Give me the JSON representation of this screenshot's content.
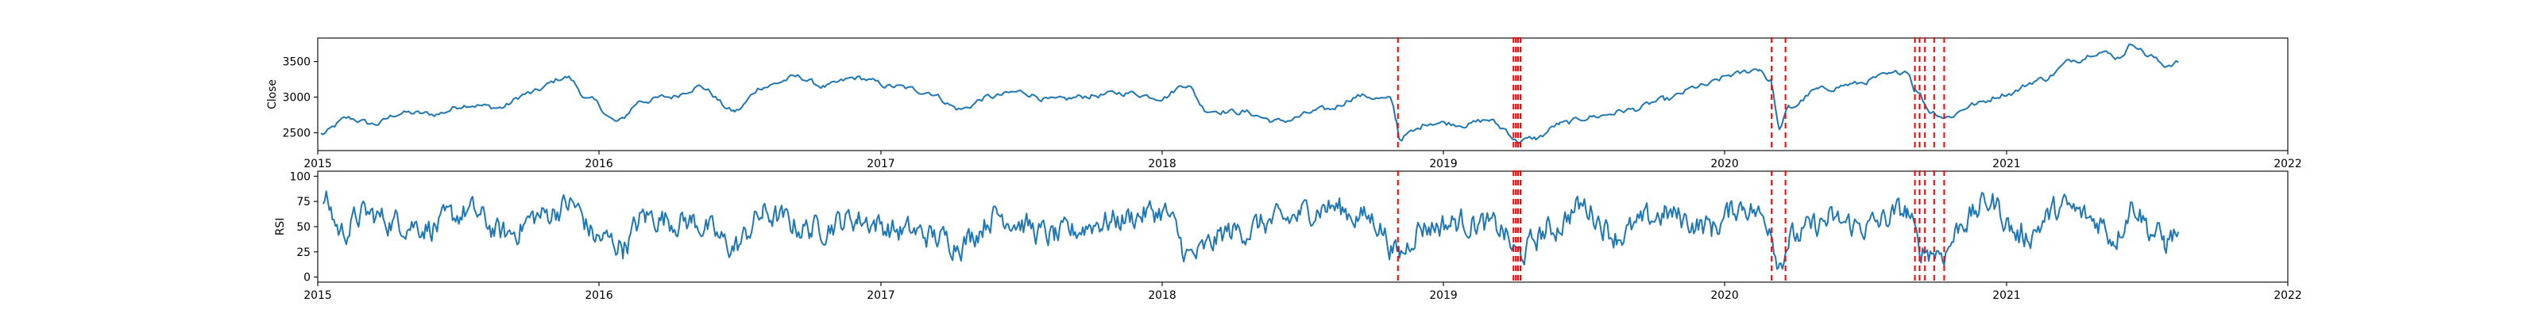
{
  "colors": {
    "series": "#1f77b4",
    "event_lines": "#ff0000",
    "axes": "#000000"
  },
  "chart_data": [
    {
      "type": "line",
      "ylabel": "Close",
      "xlim": [
        "2015-01-01",
        "2022-01-01"
      ],
      "x_ticks": [
        "2015",
        "2016",
        "2017",
        "2018",
        "2019",
        "2020",
        "2021",
        "2022"
      ],
      "ylim": [
        2250,
        3830
      ],
      "y_ticks": [
        2500,
        3000,
        3500
      ],
      "grid": false,
      "series_anchors": [
        [
          "2015-01-05",
          2480
        ],
        [
          "2015-02-10",
          2700
        ],
        [
          "2015-03-15",
          2620
        ],
        [
          "2015-04-20",
          2780
        ],
        [
          "2015-06-01",
          2760
        ],
        [
          "2015-07-15",
          2900
        ],
        [
          "2015-08-25",
          2850
        ],
        [
          "2015-10-01",
          3050
        ],
        [
          "2015-11-20",
          3280
        ],
        [
          "2015-12-20",
          2960
        ],
        [
          "2016-01-25",
          2650
        ],
        [
          "2016-02-25",
          2950
        ],
        [
          "2016-04-01",
          3000
        ],
        [
          "2016-05-10",
          3150
        ],
        [
          "2016-06-25",
          2800
        ],
        [
          "2016-08-01",
          3150
        ],
        [
          "2016-09-15",
          3280
        ],
        [
          "2016-10-20",
          3150
        ],
        [
          "2016-12-01",
          3270
        ],
        [
          "2017-01-15",
          3150
        ],
        [
          "2017-03-01",
          3080
        ],
        [
          "2017-04-15",
          2830
        ],
        [
          "2017-05-20",
          3000
        ],
        [
          "2017-07-01",
          3070
        ],
        [
          "2017-08-15",
          2950
        ],
        [
          "2017-10-01",
          3020
        ],
        [
          "2017-11-15",
          3060
        ],
        [
          "2018-01-01",
          3000
        ],
        [
          "2018-02-01",
          3180
        ],
        [
          "2018-02-28",
          2820
        ],
        [
          "2018-04-15",
          2790
        ],
        [
          "2018-06-01",
          2660
        ],
        [
          "2018-08-01",
          2820
        ],
        [
          "2018-09-15",
          3020
        ],
        [
          "2018-10-25",
          2960
        ],
        [
          "2018-11-01",
          2680
        ],
        [
          "2018-11-05",
          2420
        ],
        [
          "2018-11-20",
          2500
        ],
        [
          "2018-12-15",
          2650
        ],
        [
          "2019-01-31",
          2620
        ],
        [
          "2019-03-01",
          2680
        ],
        [
          "2019-03-20",
          2560
        ],
        [
          "2019-04-08",
          2380
        ],
        [
          "2019-05-01",
          2420
        ],
        [
          "2019-06-01",
          2620
        ],
        [
          "2019-07-15",
          2730
        ],
        [
          "2019-09-01",
          2820
        ],
        [
          "2019-10-15",
          2960
        ],
        [
          "2019-12-01",
          3150
        ],
        [
          "2020-01-15",
          3320
        ],
        [
          "2020-02-15",
          3400
        ],
        [
          "2020-03-01",
          3220
        ],
        [
          "2020-03-12",
          2560
        ],
        [
          "2020-03-25",
          2850
        ],
        [
          "2020-05-01",
          3100
        ],
        [
          "2020-06-15",
          3180
        ],
        [
          "2020-08-01",
          3300
        ],
        [
          "2020-08-25",
          3380
        ],
        [
          "2020-09-05",
          3100
        ],
        [
          "2020-09-25",
          2800
        ],
        [
          "2020-10-15",
          2720
        ],
        [
          "2020-11-20",
          2900
        ],
        [
          "2021-01-01",
          3050
        ],
        [
          "2021-02-15",
          3250
        ],
        [
          "2021-04-01",
          3530
        ],
        [
          "2021-05-01",
          3650
        ],
        [
          "2021-05-25",
          3560
        ],
        [
          "2021-06-15",
          3750
        ],
        [
          "2021-07-05",
          3580
        ],
        [
          "2021-07-25",
          3450
        ],
        [
          "2021-08-12",
          3490
        ]
      ],
      "event_dates": [
        "2018-11-03",
        "2019-04-02",
        "2019-04-05",
        "2019-04-08",
        "2019-04-11",
        "2020-03-02",
        "2020-03-20",
        "2020-09-04",
        "2020-09-10",
        "2020-09-17",
        "2020-09-29",
        "2020-10-12"
      ]
    },
    {
      "type": "line",
      "ylabel": "RSI",
      "xlim": [
        "2015-01-01",
        "2022-01-01"
      ],
      "x_ticks": [
        "2015",
        "2016",
        "2017",
        "2018",
        "2019",
        "2020",
        "2021",
        "2022"
      ],
      "ylim": [
        -5,
        105
      ],
      "y_ticks": [
        0,
        25,
        50,
        75,
        100
      ],
      "grid": false,
      "series_anchors": [
        [
          "2015-01-08",
          78
        ],
        [
          "2015-02-01",
          45
        ],
        [
          "2015-03-01",
          62
        ],
        [
          "2015-04-15",
          55
        ],
        [
          "2015-06-01",
          50
        ],
        [
          "2015-07-15",
          65
        ],
        [
          "2015-09-01",
          42
        ],
        [
          "2015-10-15",
          60
        ],
        [
          "2015-11-25",
          72
        ],
        [
          "2016-01-01",
          38
        ],
        [
          "2016-02-01",
          32
        ],
        [
          "2016-03-01",
          60
        ],
        [
          "2016-05-01",
          55
        ],
        [
          "2016-06-25",
          30
        ],
        [
          "2016-08-01",
          62
        ],
        [
          "2016-10-01",
          48
        ],
        [
          "2016-12-01",
          58
        ],
        [
          "2017-02-01",
          45
        ],
        [
          "2017-04-15",
          35
        ],
        [
          "2017-06-01",
          62
        ],
        [
          "2017-08-15",
          40
        ],
        [
          "2017-10-15",
          55
        ],
        [
          "2018-01-01",
          65
        ],
        [
          "2018-02-08",
          20
        ],
        [
          "2018-04-01",
          45
        ],
        [
          "2018-06-01",
          55
        ],
        [
          "2018-08-01",
          70
        ],
        [
          "2018-10-01",
          58
        ],
        [
          "2018-11-05",
          22
        ],
        [
          "2018-12-01",
          50
        ],
        [
          "2019-02-01",
          55
        ],
        [
          "2019-03-15",
          48
        ],
        [
          "2019-04-08",
          22
        ],
        [
          "2019-05-15",
          45
        ],
        [
          "2019-07-01",
          70
        ],
        [
          "2019-08-15",
          42
        ],
        [
          "2019-10-15",
          62
        ],
        [
          "2019-12-15",
          50
        ],
        [
          "2020-01-25",
          72
        ],
        [
          "2020-02-28",
          55
        ],
        [
          "2020-03-12",
          15
        ],
        [
          "2020-03-25",
          38
        ],
        [
          "2020-05-15",
          55
        ],
        [
          "2020-07-01",
          50
        ],
        [
          "2020-08-25",
          65
        ],
        [
          "2020-09-10",
          28
        ],
        [
          "2020-10-10",
          25
        ],
        [
          "2020-11-10",
          58
        ],
        [
          "2020-12-10",
          75
        ],
        [
          "2021-01-20",
          40
        ],
        [
          "2021-03-15",
          68
        ],
        [
          "2021-05-01",
          55
        ],
        [
          "2021-05-20",
          40
        ],
        [
          "2021-06-15",
          72
        ],
        [
          "2021-07-10",
          45
        ],
        [
          "2021-07-25",
          35
        ],
        [
          "2021-08-12",
          45
        ]
      ],
      "event_dates": [
        "2018-11-03",
        "2019-04-02",
        "2019-04-05",
        "2019-04-08",
        "2019-04-11",
        "2020-03-02",
        "2020-03-20",
        "2020-09-04",
        "2020-09-10",
        "2020-09-17",
        "2020-09-29",
        "2020-10-12"
      ]
    }
  ]
}
